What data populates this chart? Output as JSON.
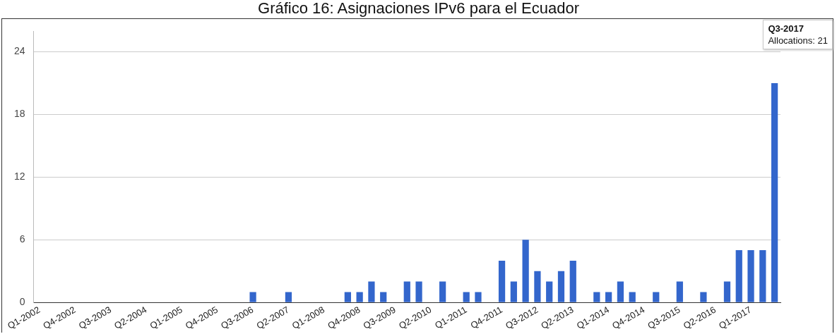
{
  "chart_data": {
    "type": "bar",
    "title": "Gráfico 16: Asignaciones IPv6 para el Ecuador",
    "categories": [
      "Q1-2002",
      null,
      null,
      "Q4-2002",
      null,
      null,
      "Q3-2003",
      null,
      null,
      "Q2-2004",
      null,
      null,
      "Q1-2005",
      null,
      null,
      "Q4-2005",
      null,
      null,
      "Q3-2006",
      null,
      null,
      "Q2-2007",
      null,
      null,
      "Q1-2008",
      null,
      null,
      "Q4-2008",
      null,
      null,
      "Q3-2009",
      null,
      null,
      "Q2-2010",
      null,
      null,
      "Q1-2011",
      null,
      null,
      "Q4-2011",
      null,
      null,
      "Q3-2012",
      null,
      null,
      "Q2-2013",
      null,
      null,
      "Q1-2014",
      null,
      null,
      "Q4-2014",
      null,
      null,
      "Q3-2015",
      null,
      null,
      "Q2-2016",
      null,
      null,
      "Q1-2017",
      null,
      null
    ],
    "values": [
      0,
      0,
      0,
      0,
      0,
      0,
      0,
      0,
      0,
      0,
      0,
      0,
      0,
      0,
      0,
      0,
      0,
      0,
      1,
      0,
      0,
      1,
      0,
      0,
      0,
      0,
      1,
      1,
      2,
      1,
      0,
      2,
      2,
      0,
      2,
      0,
      1,
      1,
      0,
      4,
      2,
      6,
      3,
      2,
      3,
      4,
      0,
      1,
      1,
      2,
      1,
      0,
      1,
      0,
      2,
      0,
      1,
      0,
      2,
      5,
      5,
      5,
      21
    ],
    "color": "#3366cc",
    "ylim": [
      0,
      26
    ],
    "yticks": [
      0,
      6,
      12,
      18,
      24
    ],
    "grid": "y",
    "legend": false,
    "annotations": [
      "Q3-2017\nAllocations: 21"
    ]
  }
}
